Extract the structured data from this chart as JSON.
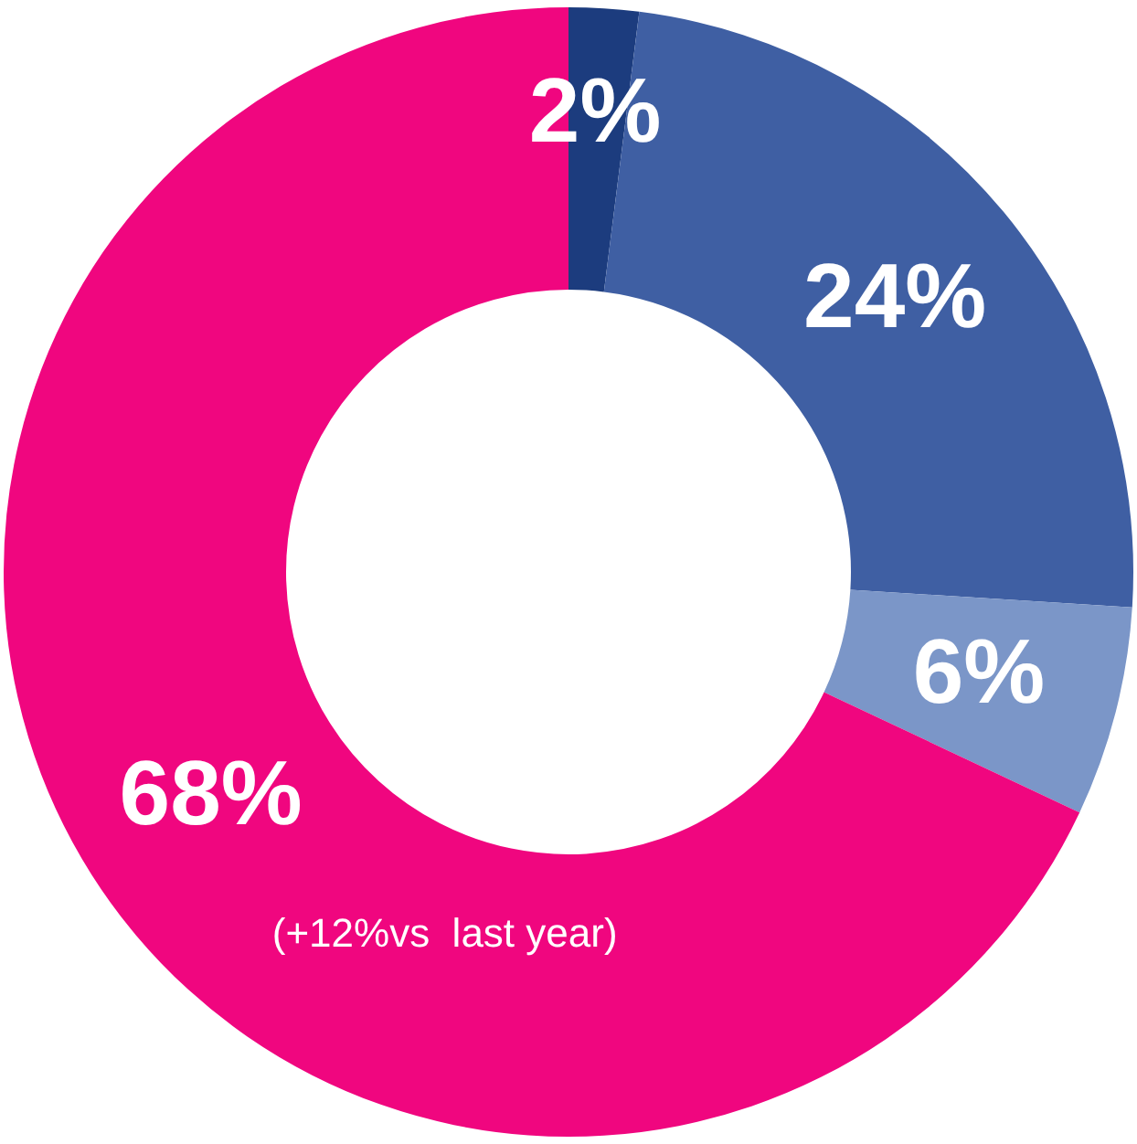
{
  "chart_data": {
    "type": "donut",
    "categories": [
      null,
      null,
      null,
      null
    ],
    "values": [
      2,
      24,
      6,
      68
    ],
    "colors": [
      "#1c3c7e",
      "#3f5fa3",
      "#7b96c8",
      "#f0067f"
    ],
    "value_labels": [
      "2%",
      "24%",
      "6%",
      "68%"
    ],
    "annotations": [
      "(+12%vs  last year)"
    ],
    "legend": false
  }
}
